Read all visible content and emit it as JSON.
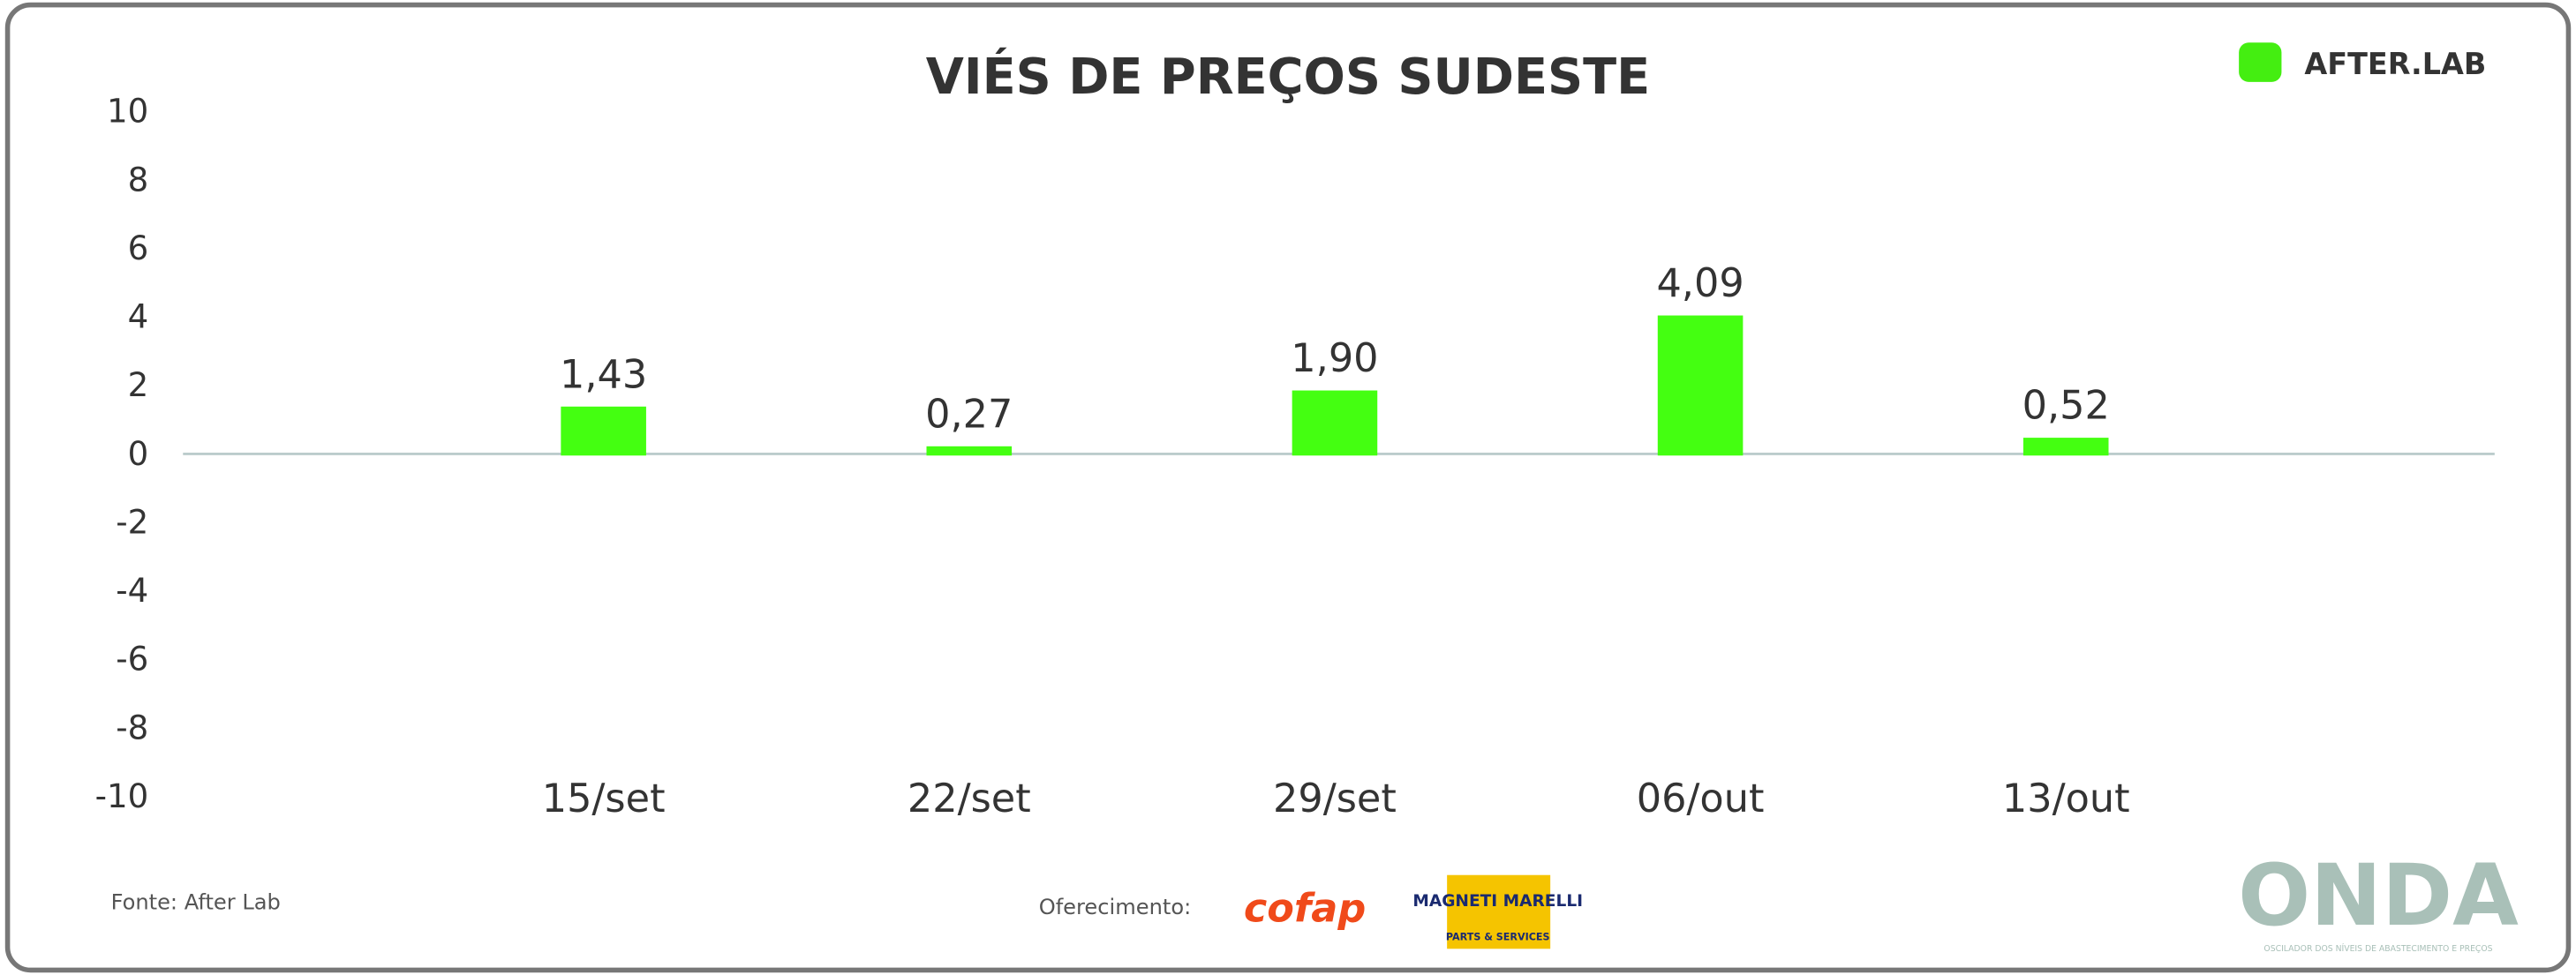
{
  "chart_data": {
    "type": "bar",
    "title": "VIÉS DE PREÇOS SUDESTE",
    "categories": [
      "15/set",
      "22/set",
      "29/set",
      "06/out",
      "13/out"
    ],
    "values": [
      1.43,
      0.27,
      1.9,
      4.09,
      0.52
    ],
    "value_labels": [
      "1,43",
      "0,27",
      "1,90",
      "4,09",
      "0,52"
    ],
    "color": "#44ff11",
    "ylim": [
      -10,
      10
    ],
    "yticks": [
      -10,
      -8,
      -6,
      -4,
      -2,
      0,
      2,
      4,
      6,
      8,
      10
    ],
    "grid": false
  },
  "brand": "AFTER.LAB",
  "source": "Fonte: After Lab",
  "sponsor_label": "Oferecimento:",
  "sponsors": [
    "cofap",
    "MAGNETI MARELLI",
    "PARTS & SERVICES"
  ],
  "footer_logo": "ONDA",
  "footer_tagline": "OSCILADOR DOS NÍVEIS DE ABASTECIMENTO E PREÇOS"
}
